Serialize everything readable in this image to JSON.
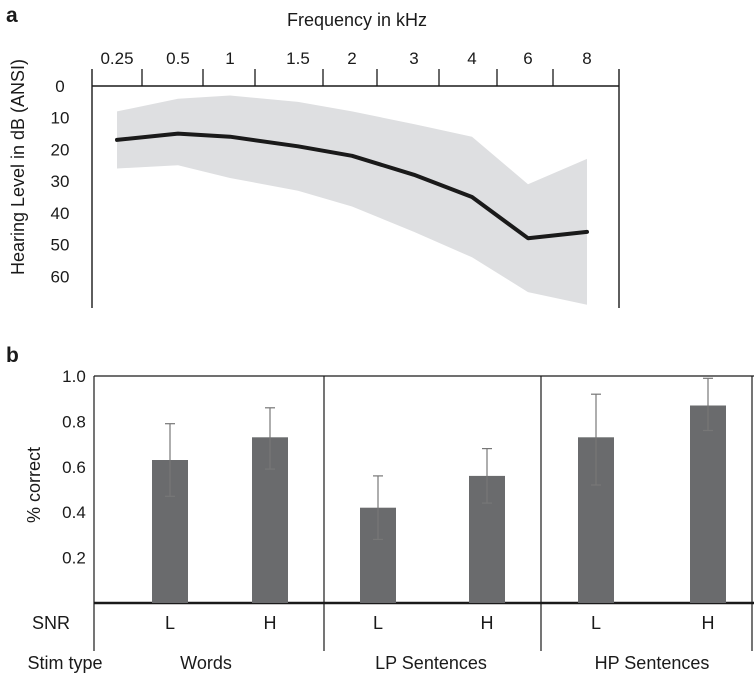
{
  "figure": {
    "panel_a_label": "a",
    "panel_b_label": "b"
  },
  "chart_data": [
    {
      "type": "area",
      "panel": "a",
      "title": "",
      "xlabel": "Frequency in kHz",
      "ylabel": "Hearing Level in dB (ANSI)",
      "x_categories": [
        "0.25",
        "0.5",
        "1",
        "1.5",
        "2",
        "3",
        "4",
        "6",
        "8"
      ],
      "y_ticks": [
        0,
        10,
        20,
        30,
        40,
        50,
        60
      ],
      "ylim": [
        0,
        70
      ],
      "y_inverted": true,
      "x_axis_position": "top",
      "series": [
        {
          "kind": "line",
          "color": "#1a1a1a",
          "values": [
            17,
            15,
            16,
            19,
            22,
            28,
            35,
            48,
            46
          ]
        },
        {
          "kind": "band",
          "color": "#dedfe1",
          "lower": [
            8,
            4,
            3,
            5,
            8,
            12,
            16,
            31,
            23
          ],
          "upper": [
            26,
            25,
            29,
            33,
            38,
            46,
            54,
            65,
            69
          ]
        }
      ]
    },
    {
      "type": "bar",
      "panel": "b",
      "title": "",
      "ylabel": "% correct",
      "y_ticks": [
        0.2,
        0.4,
        0.6,
        0.8,
        1.0
      ],
      "y_tick_labels": [
        "0.2",
        "0.4",
        "0.6",
        "0.8",
        "1.0"
      ],
      "ylim": [
        0,
        1.0
      ],
      "row_labels": {
        "snr": "SNR",
        "stim": "Stim type"
      },
      "groups": [
        "Words",
        "LP Sentences",
        "HP Sentences"
      ],
      "categories": [
        "L",
        "H",
        "L",
        "H",
        "L",
        "H"
      ],
      "group_of_bar": [
        0,
        0,
        1,
        1,
        2,
        2
      ],
      "values": [
        0.63,
        0.73,
        0.42,
        0.56,
        0.73,
        0.87
      ],
      "error_low": [
        0.47,
        0.59,
        0.28,
        0.44,
        0.52,
        0.76
      ],
      "error_high": [
        0.79,
        0.86,
        0.56,
        0.68,
        0.92,
        0.99
      ],
      "bar_color": "#6a6b6d",
      "error_color": "#777777"
    }
  ]
}
